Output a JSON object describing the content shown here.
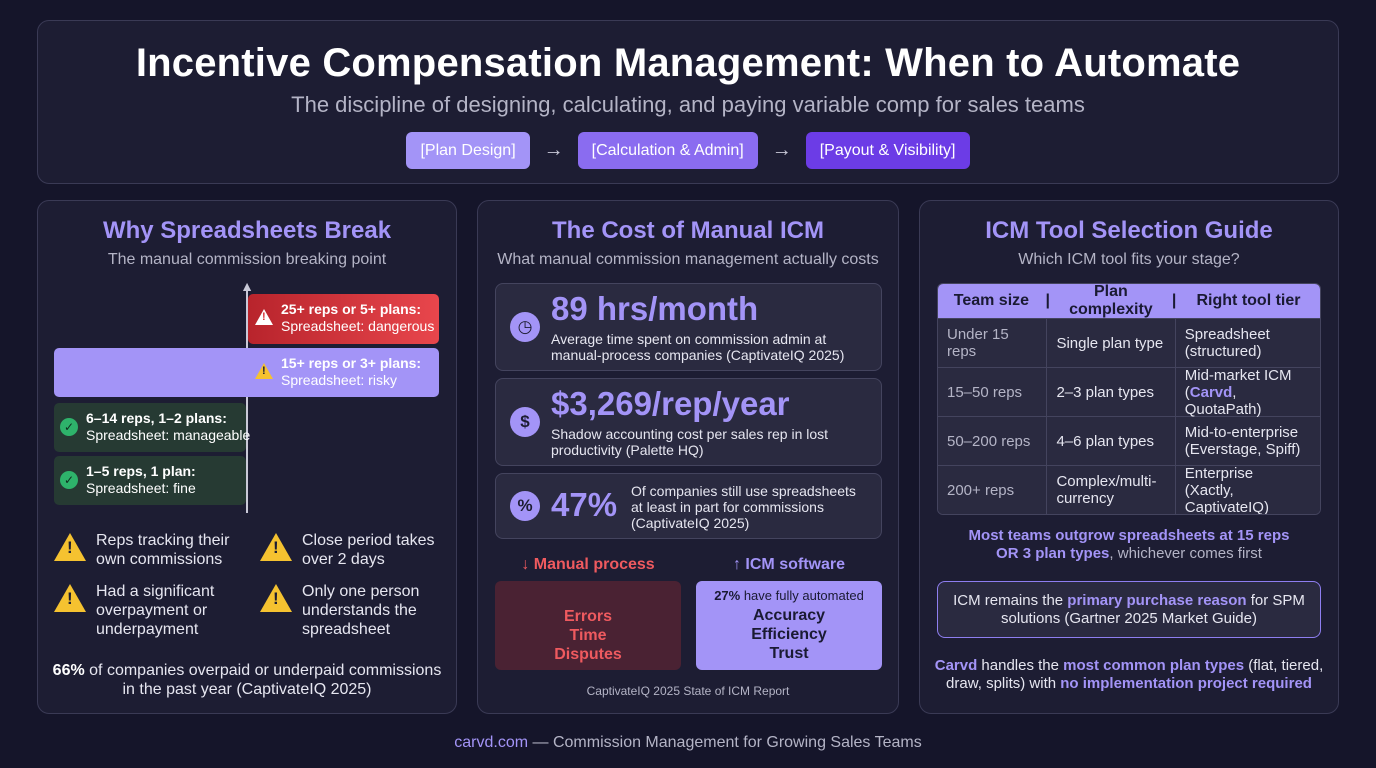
{
  "hero": {
    "title": "Incentive Compensation Management: When to Automate",
    "subtitle": "The discipline of designing, calculating, and paying variable comp for sales teams",
    "flow": [
      "[Plan Design]",
      "[Calculation & Admin]",
      "[Payout & Visibility]"
    ],
    "flow_arrow": "→"
  },
  "colors": {
    "accent": "#a394f7",
    "pill1": "#a394f7",
    "pill2": "#8a6cf0",
    "pill3": "#6c3ce6",
    "danger": "#d8333a",
    "ok": "#2eb36b",
    "warn": "#f5c230"
  },
  "card1": {
    "title": "Why Spreadsheets Break",
    "subtitle": "The manual commission breaking point",
    "steps": [
      {
        "title": "25+ reps or 5+ plans:",
        "desc": "Spreadsheet: dangerous",
        "icon": "warning-icon"
      },
      {
        "title": "15+ reps or 3+ plans:",
        "desc": "Spreadsheet: risky",
        "icon": "warning-icon"
      },
      {
        "title": "6–14 reps, 1–2 plans:",
        "desc": "Spreadsheet: manageable",
        "icon": "check-icon"
      },
      {
        "title": "1–5 reps, 1 plan:",
        "desc": "Spreadsheet: fine",
        "icon": "check-icon"
      }
    ],
    "signs": [
      "Reps tracking their own commissions",
      "Close period takes over 2 days",
      "Had a significant overpayment or underpayment",
      "Only one person understands the spreadsheet"
    ],
    "stat_value": "66%",
    "stat_text_1": " of companies overpaid or underpaid commissions",
    "stat_text_2": "in the past year (CaptivateIQ 2025)"
  },
  "card2": {
    "title": "The Cost of Manual ICM",
    "subtitle": "What manual commission management actually costs",
    "metrics": [
      {
        "value": "89 hrs/month",
        "line1": "Average time spent on commission admin at",
        "line2": "manual-process companies (CaptivateIQ 2025)",
        "icon": "clock-icon"
      },
      {
        "value": "$3,269/rep/year",
        "line1": "Shadow accounting cost per sales rep in lost",
        "line2": "productivity (Palette HQ)",
        "icon": "dollar-icon"
      },
      {
        "value": "47%",
        "line1": "Of companies still use spreadsheets",
        "line2": "at least in part for commissions",
        "line3": "(CaptivateIQ 2025)",
        "icon": "percent-icon"
      }
    ],
    "manual_head": "↓ Manual process",
    "software_head": "↑ ICM software",
    "manual_items": [
      "Errors",
      "Time",
      "Disputes"
    ],
    "software_pct": "27%",
    "software_note": " have fully automated",
    "software_items": [
      "Accuracy",
      "Efficiency",
      "Trust"
    ],
    "source": "CaptivateIQ 2025 State of ICM Report"
  },
  "card3": {
    "title": "ICM Tool Selection Guide",
    "subtitle": "Which ICM tool fits your stage?",
    "headers": [
      "Team size",
      "Plan complexity",
      "Right tool tier"
    ],
    "header_divider": "|",
    "rows": [
      {
        "size": "Under 15 reps",
        "plans": "Single plan type",
        "tier_1": "Spreadsheet",
        "tier_2": "(structured)"
      },
      {
        "size": "15–50 reps",
        "plans": "2–3 plan types",
        "tier_1": "Mid-market ICM",
        "tier_2a": "(",
        "tier_hl": "Carvd",
        "tier_2b": ", QuotaPath)"
      },
      {
        "size": "50–200 reps",
        "plans": "4–6 plan types",
        "tier_1": "Mid-to-enterprise",
        "tier_2": "(Everstage, Spiff)"
      },
      {
        "size": "200+ reps",
        "plans_1": "Complex/multi-",
        "plans_2": "currency",
        "tier_1": "Enterprise",
        "tier_2": "(Xactly, CaptivateIQ)"
      }
    ],
    "outgrow_1": "Most teams outgrow spreadsheets at 15 reps",
    "outgrow_2_bold": "OR 3 plan types",
    "outgrow_2_rest": ", whichever comes first",
    "quote_a": "ICM remains the ",
    "quote_hl": "primary purchase reason",
    "quote_b": " for SPM",
    "quote_c": "solutions (Gartner 2025 Market Guide)",
    "cta_brand": "Carvd",
    "cta_a": " handles the ",
    "cta_hl1": "most common plan types",
    "cta_b": " (flat, tiered,",
    "cta_c": "draw, splits) with ",
    "cta_hl2": "no implementation project required"
  },
  "footer": {
    "brand": "carvd.com",
    "text": " — Commission Management for Growing Sales Teams"
  }
}
